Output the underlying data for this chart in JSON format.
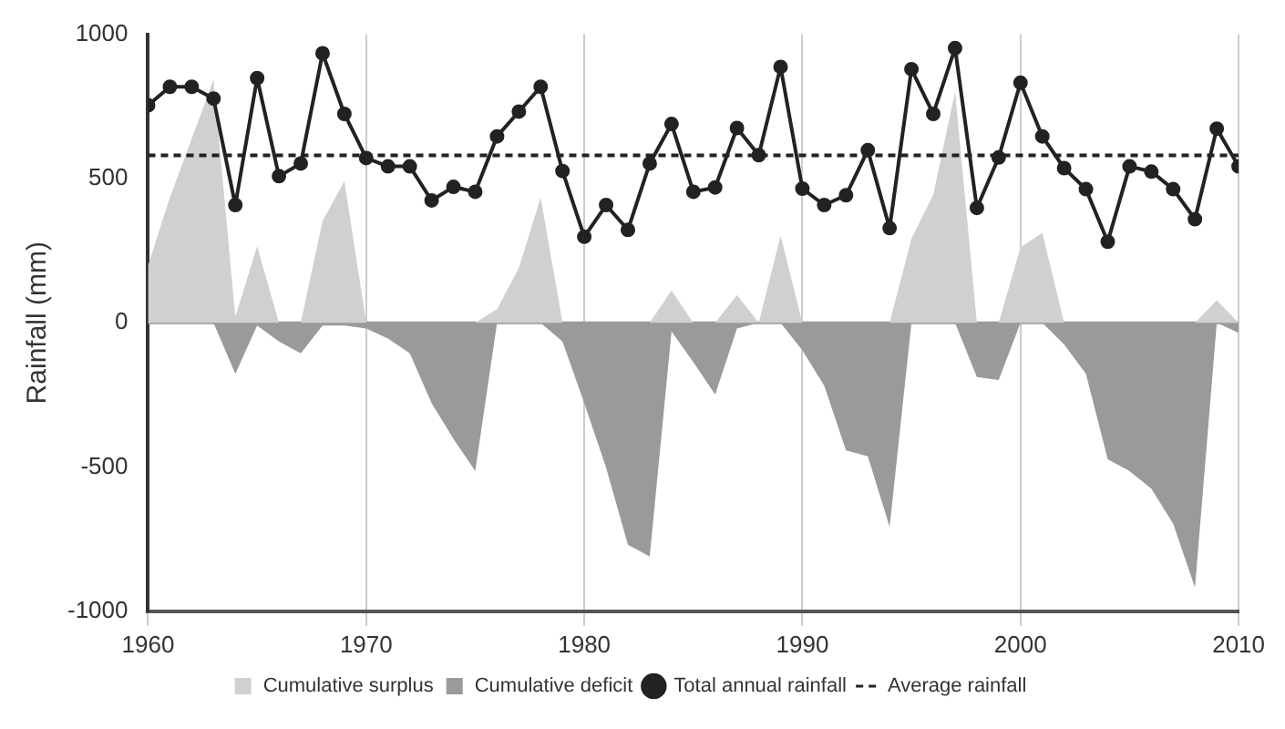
{
  "chart_data": {
    "type": "line",
    "ylabel": "Rainfall (mm)",
    "x": [
      1960,
      1961,
      1962,
      1963,
      1964,
      1965,
      1966,
      1967,
      1968,
      1969,
      1970,
      1971,
      1972,
      1973,
      1974,
      1975,
      1976,
      1977,
      1978,
      1979,
      1980,
      1981,
      1982,
      1983,
      1984,
      1985,
      1986,
      1987,
      1988,
      1989,
      1990,
      1991,
      1992,
      1993,
      1994,
      1995,
      1996,
      1997,
      1998,
      1999,
      2000,
      2001,
      2002,
      2003,
      2004,
      2005,
      2006,
      2007,
      2008,
      2009,
      2010
    ],
    "series": [
      {
        "name": "Cumulative surplus",
        "type": "area",
        "color": "#d0d0d0",
        "marker": "none",
        "values": [
          200,
          434,
          638,
          842,
          20,
          265,
          0,
          0,
          353,
          491,
          0,
          0,
          0,
          0,
          0,
          0,
          47,
          190,
          434,
          0,
          0,
          0,
          0,
          0,
          112,
          0,
          0,
          96,
          0,
          302,
          0,
          0,
          0,
          0,
          0,
          291,
          444,
          801,
          0,
          0,
          261,
          312,
          0,
          0,
          0,
          0,
          0,
          0,
          0,
          78,
          0
        ]
      },
      {
        "name": "Cumulative deficit",
        "type": "area",
        "color": "#9a9a9a",
        "marker": "none",
        "values": [
          0,
          0,
          0,
          0,
          -177,
          -10,
          -65,
          -106,
          -10,
          -10,
          -20,
          -55,
          -106,
          -279,
          -402,
          -514,
          0,
          0,
          0,
          -65,
          -279,
          -502,
          -769,
          -810,
          -30,
          -137,
          -249,
          -20,
          0,
          0,
          -96,
          -218,
          -442,
          -463,
          -708,
          0,
          0,
          0,
          -188,
          -198,
          0,
          0,
          -75,
          -177,
          -473,
          -514,
          -575,
          -697,
          -918,
          0,
          -35
        ]
      },
      {
        "name": "Total annual rainfall",
        "type": "line",
        "color": "#222222",
        "marker": "circle",
        "line_style": "solid",
        "values": [
          754,
          818,
          818,
          777,
          408,
          848,
          508,
          552,
          934,
          724,
          571,
          542,
          542,
          424,
          471,
          454,
          646,
          732,
          818,
          526,
          298,
          408,
          322,
          552,
          689,
          454,
          469,
          675,
          581,
          887,
          465,
          408,
          442,
          598,
          328,
          879,
          724,
          952,
          398,
          573,
          832,
          646,
          536,
          463,
          281,
          542,
          524,
          463,
          359,
          673,
          542
        ]
      },
      {
        "name": "Average rainfall",
        "type": "line",
        "color": "#222222",
        "marker": "none",
        "line_style": "dashed",
        "values": [
          580,
          580,
          580,
          580,
          580,
          580,
          580,
          580,
          580,
          580,
          580,
          580,
          580,
          580,
          580,
          580,
          580,
          580,
          580,
          580,
          580,
          580,
          580,
          580,
          580,
          580,
          580,
          580,
          580,
          580,
          580,
          580,
          580,
          580,
          580,
          580,
          580,
          580,
          580,
          580,
          580,
          580,
          580,
          580,
          580,
          580,
          580,
          580,
          580,
          580,
          580
        ]
      }
    ],
    "xlim": [
      1960,
      2010
    ],
    "xticks": [
      1960,
      1970,
      1980,
      1990,
      2000,
      2010
    ],
    "ylim": [
      -1000,
      1000
    ],
    "yticks": [
      -1000,
      -500,
      0,
      500,
      1000
    ],
    "grid": "x",
    "legend": "bottom",
    "ref_lines": [
      {
        "axis": "y",
        "value": 0,
        "color": "#999999"
      }
    ]
  }
}
